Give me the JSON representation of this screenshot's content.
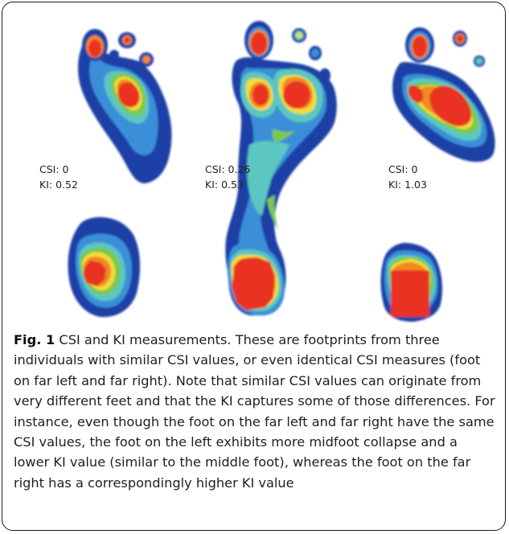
{
  "feet": [
    {
      "csi_label": "CSI: 0",
      "ki_label": "KI: 0.52"
    },
    {
      "csi_label": "CSI: 0.26",
      "ki_label": "KI: 0.53"
    },
    {
      "csi_label": "CSI: 0",
      "ki_label": "KI: 1.03"
    }
  ],
  "caption": {
    "figure_label": "Fig. 1",
    "text": "CSI and KI measurements. These are footprints from three individuals with similar CSI values, or even identical CSI measures (foot on far left and far right). Note that similar CSI values can originate from very different feet and that the KI captures some of those differences. For instance, even though the foot on the far left and far right have the same CSI values, the foot on the left exhibits more midfoot collapse and a lower KI value (similar to the middle foot), whereas the foot on the far right has a correspondingly higher KI value"
  },
  "colors": {
    "outer": "#1f3fa6",
    "mid": "#3a8fd8",
    "cyan": "#5cc6c0",
    "green": "#7cc94a",
    "yellow": "#f0dc3a",
    "orange": "#f08a24",
    "red": "#ea3323",
    "border": "#1a1a1a"
  }
}
